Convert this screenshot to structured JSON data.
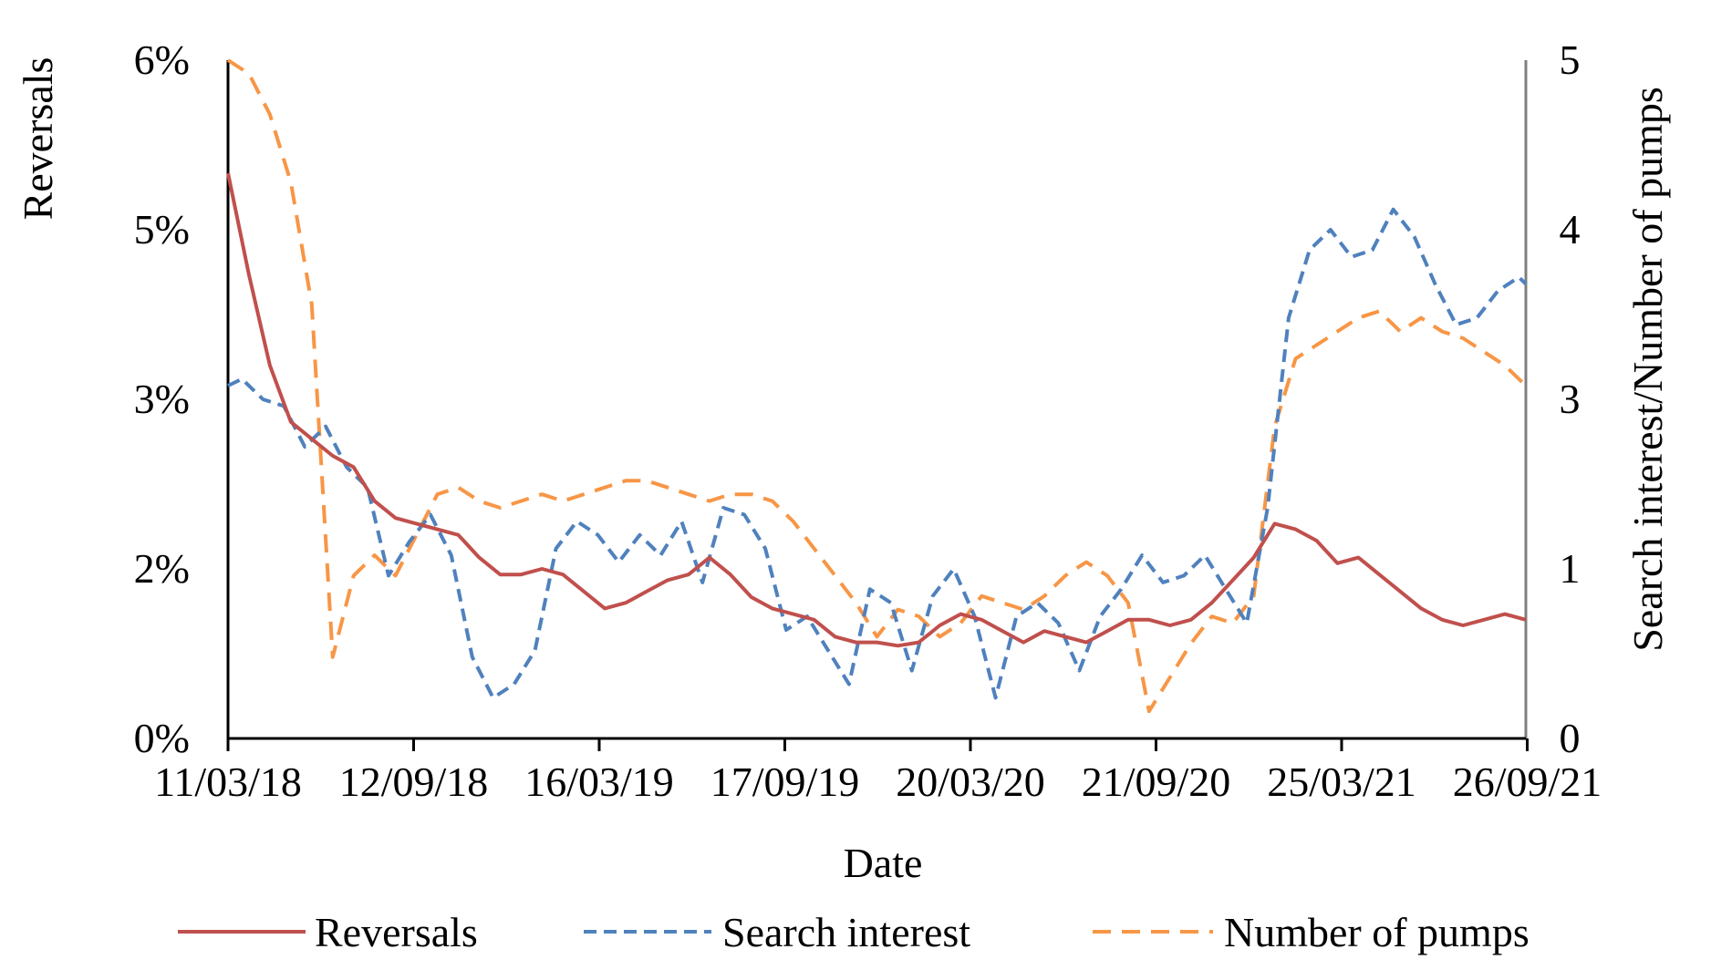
{
  "chart_data": {
    "type": "line",
    "xlabel": "Date",
    "ylabel_left": "Reversals",
    "ylabel_right": "Search interest/Number of pumps",
    "x_ticks": [
      "11/03/18",
      "12/09/18",
      "16/03/19",
      "17/09/19",
      "20/03/20",
      "21/09/20",
      "25/03/21",
      "26/09/21"
    ],
    "x_range": [
      "2018-03-11",
      "2021-10-03"
    ],
    "yleft_ticks": [
      "0%",
      "2%",
      "3%",
      "5%",
      "6%"
    ],
    "yleft_range": [
      0,
      6
    ],
    "yright_ticks": [
      "0",
      "1",
      "3",
      "4",
      "5"
    ],
    "yright_range": [
      0,
      5
    ],
    "legend_position": "bottom",
    "series": [
      {
        "name": "Reversals",
        "axis": "left",
        "color": "#c0504d",
        "style": "solid",
        "points": [
          [
            "2018-03-11",
            5.0
          ],
          [
            "2018-04-01",
            4.1
          ],
          [
            "2018-04-22",
            3.3
          ],
          [
            "2018-05-13",
            2.8
          ],
          [
            "2018-06-03",
            2.65
          ],
          [
            "2018-06-24",
            2.5
          ],
          [
            "2018-07-15",
            2.4
          ],
          [
            "2018-08-05",
            2.1
          ],
          [
            "2018-08-26",
            1.95
          ],
          [
            "2018-09-16",
            1.9
          ],
          [
            "2018-10-07",
            1.85
          ],
          [
            "2018-10-28",
            1.8
          ],
          [
            "2018-11-18",
            1.6
          ],
          [
            "2018-12-09",
            1.45
          ],
          [
            "2018-12-30",
            1.45
          ],
          [
            "2019-01-20",
            1.5
          ],
          [
            "2019-02-10",
            1.45
          ],
          [
            "2019-03-03",
            1.3
          ],
          [
            "2019-03-24",
            1.15
          ],
          [
            "2019-04-14",
            1.2
          ],
          [
            "2019-05-05",
            1.3
          ],
          [
            "2019-05-26",
            1.4
          ],
          [
            "2019-06-16",
            1.45
          ],
          [
            "2019-07-07",
            1.6
          ],
          [
            "2019-07-28",
            1.45
          ],
          [
            "2019-08-18",
            1.25
          ],
          [
            "2019-09-08",
            1.15
          ],
          [
            "2019-09-29",
            1.1
          ],
          [
            "2019-10-20",
            1.05
          ],
          [
            "2019-11-10",
            0.9
          ],
          [
            "2019-12-01",
            0.85
          ],
          [
            "2019-12-22",
            0.85
          ],
          [
            "2020-01-12",
            0.82
          ],
          [
            "2020-02-02",
            0.85
          ],
          [
            "2020-02-23",
            1.0
          ],
          [
            "2020-03-15",
            1.1
          ],
          [
            "2020-04-05",
            1.05
          ],
          [
            "2020-04-26",
            0.95
          ],
          [
            "2020-05-17",
            0.85
          ],
          [
            "2020-06-07",
            0.95
          ],
          [
            "2020-06-28",
            0.9
          ],
          [
            "2020-07-19",
            0.85
          ],
          [
            "2020-08-09",
            0.95
          ],
          [
            "2020-08-30",
            1.05
          ],
          [
            "2020-09-20",
            1.05
          ],
          [
            "2020-10-11",
            1.0
          ],
          [
            "2020-11-01",
            1.05
          ],
          [
            "2020-11-22",
            1.2
          ],
          [
            "2020-12-13",
            1.4
          ],
          [
            "2021-01-03",
            1.6
          ],
          [
            "2021-01-24",
            1.9
          ],
          [
            "2021-02-14",
            1.85
          ],
          [
            "2021-03-07",
            1.75
          ],
          [
            "2021-03-28",
            1.55
          ],
          [
            "2021-04-18",
            1.6
          ],
          [
            "2021-05-09",
            1.45
          ],
          [
            "2021-05-30",
            1.3
          ],
          [
            "2021-06-20",
            1.15
          ],
          [
            "2021-07-11",
            1.05
          ],
          [
            "2021-08-01",
            1.0
          ],
          [
            "2021-08-22",
            1.05
          ],
          [
            "2021-09-12",
            1.1
          ],
          [
            "2021-10-03",
            1.05
          ]
        ]
      },
      {
        "name": "Search interest",
        "axis": "right",
        "color": "#4f81bd",
        "style": "dashed",
        "points": [
          [
            "2018-03-11",
            2.6
          ],
          [
            "2018-03-25",
            2.65
          ],
          [
            "2018-04-15",
            2.5
          ],
          [
            "2018-05-06",
            2.45
          ],
          [
            "2018-05-27",
            2.15
          ],
          [
            "2018-06-17",
            2.3
          ],
          [
            "2018-07-08",
            2.0
          ],
          [
            "2018-07-29",
            1.85
          ],
          [
            "2018-08-19",
            1.2
          ],
          [
            "2018-09-09",
            1.45
          ],
          [
            "2018-09-30",
            1.65
          ],
          [
            "2018-10-21",
            1.35
          ],
          [
            "2018-11-11",
            0.6
          ],
          [
            "2018-12-02",
            0.3
          ],
          [
            "2018-12-23",
            0.4
          ],
          [
            "2019-01-13",
            0.65
          ],
          [
            "2019-02-03",
            1.4
          ],
          [
            "2019-02-24",
            1.6
          ],
          [
            "2019-03-17",
            1.5
          ],
          [
            "2019-04-07",
            1.3
          ],
          [
            "2019-04-28",
            1.5
          ],
          [
            "2019-05-19",
            1.35
          ],
          [
            "2019-06-09",
            1.6
          ],
          [
            "2019-06-30",
            1.15
          ],
          [
            "2019-07-21",
            1.7
          ],
          [
            "2019-08-11",
            1.65
          ],
          [
            "2019-09-01",
            1.4
          ],
          [
            "2019-09-22",
            0.8
          ],
          [
            "2019-10-13",
            0.9
          ],
          [
            "2019-11-03",
            0.65
          ],
          [
            "2019-11-24",
            0.4
          ],
          [
            "2019-12-15",
            1.1
          ],
          [
            "2020-01-05",
            1.0
          ],
          [
            "2020-01-26",
            0.5
          ],
          [
            "2020-02-16",
            1.05
          ],
          [
            "2020-03-08",
            1.25
          ],
          [
            "2020-03-29",
            0.9
          ],
          [
            "2020-04-19",
            0.3
          ],
          [
            "2020-05-10",
            0.9
          ],
          [
            "2020-05-31",
            1.0
          ],
          [
            "2020-06-21",
            0.85
          ],
          [
            "2020-07-12",
            0.5
          ],
          [
            "2020-08-02",
            0.9
          ],
          [
            "2020-08-23",
            1.1
          ],
          [
            "2020-09-13",
            1.35
          ],
          [
            "2020-10-04",
            1.15
          ],
          [
            "2020-10-25",
            1.2
          ],
          [
            "2020-11-15",
            1.35
          ],
          [
            "2020-12-06",
            1.1
          ],
          [
            "2020-12-27",
            0.85
          ],
          [
            "2021-01-17",
            1.7
          ],
          [
            "2021-02-07",
            3.1
          ],
          [
            "2021-02-28",
            3.6
          ],
          [
            "2021-03-21",
            3.75
          ],
          [
            "2021-04-11",
            3.55
          ],
          [
            "2021-05-02",
            3.6
          ],
          [
            "2021-05-23",
            3.9
          ],
          [
            "2021-06-13",
            3.7
          ],
          [
            "2021-07-04",
            3.35
          ],
          [
            "2021-07-25",
            3.05
          ],
          [
            "2021-08-15",
            3.1
          ],
          [
            "2021-09-05",
            3.3
          ],
          [
            "2021-09-26",
            3.4
          ],
          [
            "2021-10-03",
            3.35
          ]
        ]
      },
      {
        "name": "Number of pumps",
        "axis": "right",
        "color": "#f79646",
        "style": "dashed",
        "points": [
          [
            "2018-03-11",
            5.0
          ],
          [
            "2018-04-01",
            4.9
          ],
          [
            "2018-04-22",
            4.6
          ],
          [
            "2018-05-13",
            4.1
          ],
          [
            "2018-06-03",
            3.2
          ],
          [
            "2018-06-24",
            0.6
          ],
          [
            "2018-07-15",
            1.2
          ],
          [
            "2018-08-05",
            1.35
          ],
          [
            "2018-08-26",
            1.2
          ],
          [
            "2018-09-16",
            1.5
          ],
          [
            "2018-10-07",
            1.8
          ],
          [
            "2018-10-28",
            1.85
          ],
          [
            "2018-11-18",
            1.75
          ],
          [
            "2018-12-09",
            1.7
          ],
          [
            "2018-12-30",
            1.75
          ],
          [
            "2019-01-20",
            1.8
          ],
          [
            "2019-02-10",
            1.75
          ],
          [
            "2019-03-03",
            1.8
          ],
          [
            "2019-03-24",
            1.85
          ],
          [
            "2019-04-14",
            1.9
          ],
          [
            "2019-05-05",
            1.9
          ],
          [
            "2019-05-26",
            1.85
          ],
          [
            "2019-06-16",
            1.8
          ],
          [
            "2019-07-07",
            1.75
          ],
          [
            "2019-07-28",
            1.8
          ],
          [
            "2019-08-18",
            1.8
          ],
          [
            "2019-09-08",
            1.75
          ],
          [
            "2019-09-29",
            1.6
          ],
          [
            "2019-10-20",
            1.4
          ],
          [
            "2019-11-10",
            1.2
          ],
          [
            "2019-12-01",
            1.0
          ],
          [
            "2019-12-22",
            0.75
          ],
          [
            "2020-01-12",
            0.95
          ],
          [
            "2020-02-02",
            0.9
          ],
          [
            "2020-02-23",
            0.75
          ],
          [
            "2020-03-15",
            0.85
          ],
          [
            "2020-04-05",
            1.05
          ],
          [
            "2020-04-26",
            1.0
          ],
          [
            "2020-05-17",
            0.95
          ],
          [
            "2020-06-07",
            1.05
          ],
          [
            "2020-06-28",
            1.2
          ],
          [
            "2020-07-19",
            1.3
          ],
          [
            "2020-08-09",
            1.2
          ],
          [
            "2020-08-30",
            1.0
          ],
          [
            "2020-09-20",
            0.2
          ],
          [
            "2020-10-11",
            0.45
          ],
          [
            "2020-11-01",
            0.7
          ],
          [
            "2020-11-22",
            0.9
          ],
          [
            "2020-12-13",
            0.85
          ],
          [
            "2021-01-03",
            1.05
          ],
          [
            "2021-01-24",
            2.3
          ],
          [
            "2021-02-14",
            2.8
          ],
          [
            "2021-03-07",
            2.9
          ],
          [
            "2021-03-28",
            3.0
          ],
          [
            "2021-04-18",
            3.1
          ],
          [
            "2021-05-09",
            3.15
          ],
          [
            "2021-05-30",
            3.0
          ],
          [
            "2021-06-20",
            3.1
          ],
          [
            "2021-07-11",
            3.0
          ],
          [
            "2021-08-01",
            2.95
          ],
          [
            "2021-08-22",
            2.85
          ],
          [
            "2021-09-12",
            2.75
          ],
          [
            "2021-10-03",
            2.6
          ]
        ]
      }
    ]
  }
}
